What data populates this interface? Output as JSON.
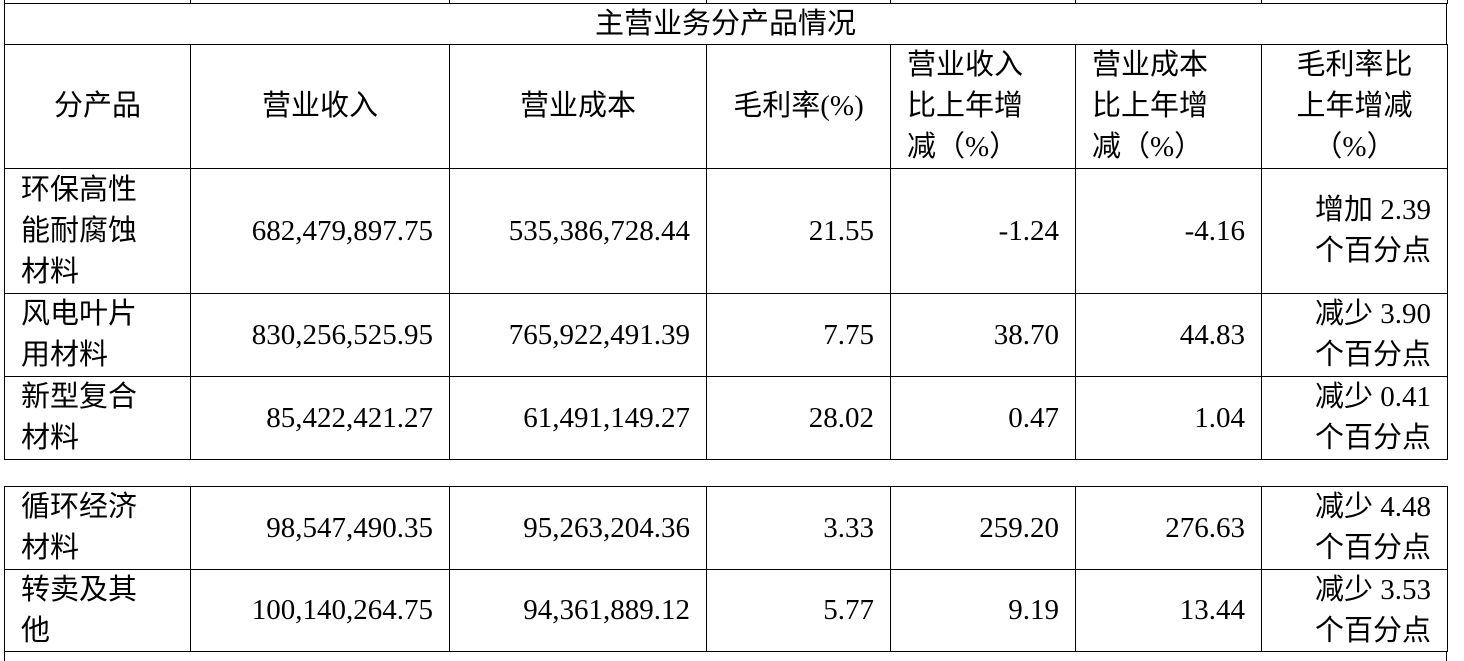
{
  "table": {
    "title": "主营业务分产品情况",
    "header": [
      "分产品",
      "营业收入",
      "营业成本",
      "毛利率(%)",
      [
        "营业收入",
        "比上年增",
        "减（%）"
      ],
      [
        "营业成本",
        "比上年增",
        "减（%）"
      ],
      [
        "毛利率比",
        "上年增减",
        "（%）"
      ]
    ],
    "groups": [
      [
        [
          [
            "环保高性",
            "能耐腐蚀",
            "材料"
          ],
          "682,479,897.75",
          "535,386,728.44",
          "21.55",
          "-1.24",
          "-4.16",
          [
            "增加 2.39",
            "个百分点"
          ]
        ],
        [
          [
            "风电叶片",
            "用材料"
          ],
          "830,256,525.95",
          "765,922,491.39",
          "7.75",
          "38.70",
          "44.83",
          [
            "减少 3.90",
            "个百分点"
          ]
        ],
        [
          [
            "新型复合",
            "材料"
          ],
          "85,422,421.27",
          "61,491,149.27",
          "28.02",
          "0.47",
          "1.04",
          [
            "减少 0.41",
            "个百分点"
          ]
        ]
      ],
      [
        [
          [
            "循环经济",
            "材料"
          ],
          "98,547,490.35",
          "95,263,204.36",
          "3.33",
          "259.20",
          "276.63",
          [
            "减少 4.48",
            "个百分点"
          ]
        ],
        [
          [
            "转卖及其",
            "他"
          ],
          "100,140,264.75",
          "94,361,889.12",
          "5.77",
          "9.19",
          "13.44",
          [
            "减少 3.53",
            "个百分点"
          ]
        ]
      ]
    ]
  }
}
